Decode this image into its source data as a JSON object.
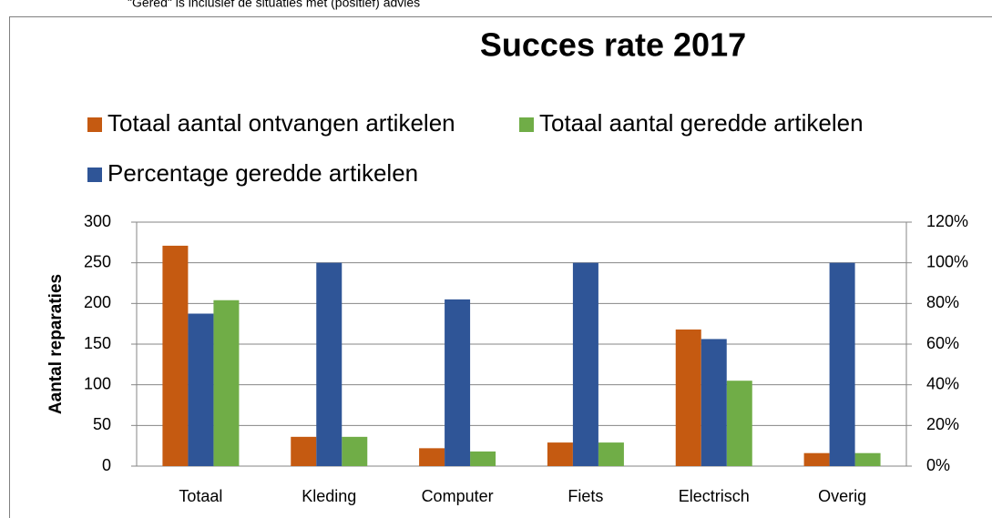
{
  "chart_data": {
    "type": "bar",
    "note": "\"Gered\" is inclusief  de situaties met (positief) advies",
    "title": "Succes rate 2017",
    "y_label": "Aantal reparaties",
    "categories": [
      "Totaal",
      "Kleding",
      "Computer",
      "Fiets",
      "Electrisch",
      "Overig"
    ],
    "series": [
      {
        "name": "Totaal aantal ontvangen artikelen",
        "color": "#c55a11",
        "values": [
          271,
          36,
          22,
          29,
          168,
          16
        ]
      },
      {
        "name": "Totaal aantal geredde artikelen",
        "color": "#70ad47",
        "values": [
          204,
          36,
          18,
          29,
          105,
          16
        ]
      },
      {
        "name": "Percentage geredde artikelen",
        "color": "#2f5597",
        "axis": "y2",
        "values": [
          75,
          100,
          82,
          100,
          62.5,
          100
        ]
      }
    ],
    "ylim": [
      0,
      300
    ],
    "yticks": [
      0,
      50,
      100,
      150,
      200,
      250,
      300
    ],
    "y2lim": [
      0,
      120
    ],
    "y2ticks": [
      {
        "value": 0,
        "label": "0%"
      },
      {
        "value": 20,
        "label": "20%"
      },
      {
        "value": 40,
        "label": "40%"
      },
      {
        "value": 60,
        "label": "60%"
      },
      {
        "value": 80,
        "label": "80%"
      },
      {
        "value": 100,
        "label": "100%"
      },
      {
        "value": 120,
        "label": "120%"
      }
    ],
    "grid": true
  }
}
